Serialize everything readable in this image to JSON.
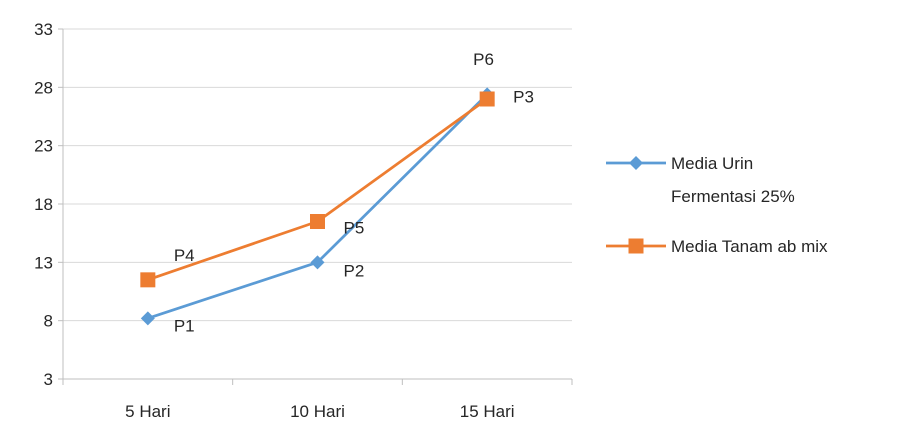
{
  "chart_data": {
    "type": "line",
    "categories": [
      "5 Hari",
      "10 Hari",
      "15 Hari"
    ],
    "yticks": [
      3,
      8,
      13,
      18,
      23,
      28,
      33
    ],
    "ylim": [
      3,
      33
    ],
    "grid": true,
    "legend_position": "right",
    "series": [
      {
        "name": "Media Urin Fermentasi 25%",
        "name_lines": [
          "Media Urin",
          "Fermentasi 25%"
        ],
        "values": [
          8.2,
          13.0,
          27.4
        ],
        "point_labels": [
          "P1",
          "P2",
          "P3"
        ],
        "color": "#5B9BD5",
        "marker": "diamond"
      },
      {
        "name": "Media Tanam ab mix",
        "name_lines": [
          "Media Tanam ab mix"
        ],
        "values": [
          11.5,
          16.5,
          27.0
        ],
        "point_labels": [
          "P4",
          "P5",
          "P6"
        ],
        "color": "#ED7D31",
        "marker": "square"
      }
    ]
  }
}
